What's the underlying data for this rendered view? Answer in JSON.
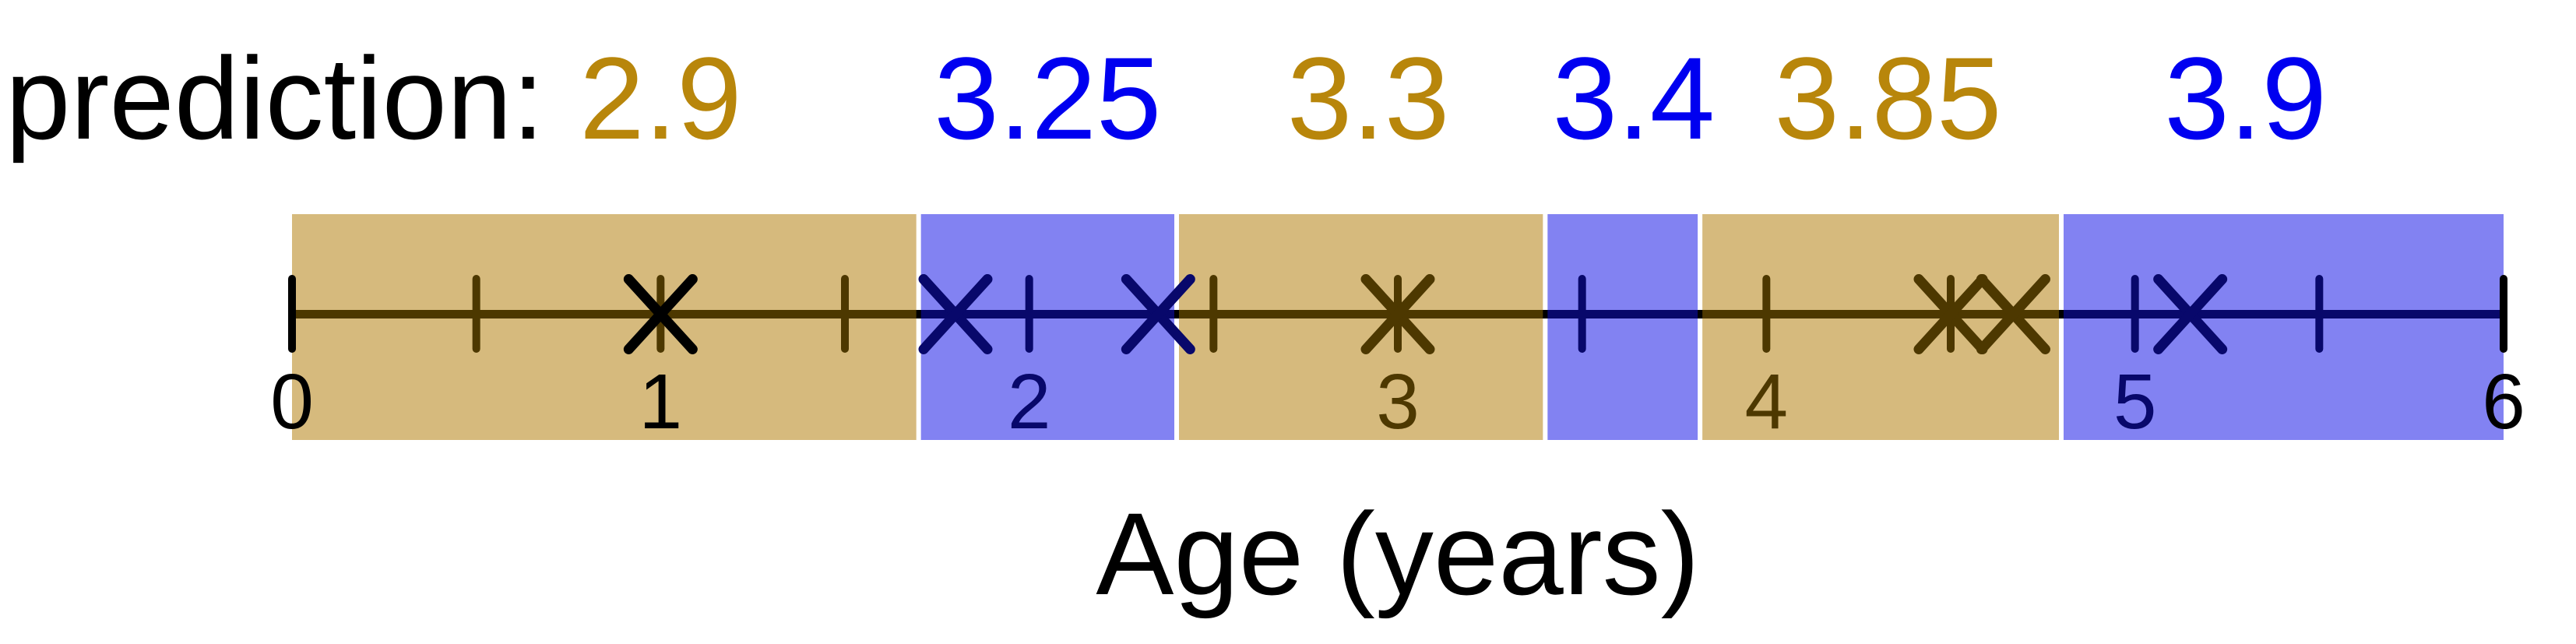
{
  "header": {
    "prediction_prefix": "prediction:"
  },
  "colors": {
    "tan_band": "#d6ba7d",
    "blue_band": "#8282f2",
    "gold_text": "#b8860b",
    "blue_text": "#0000f0",
    "brown_mark": "#4d3800",
    "navy_mark": "#08086b",
    "black": "#000000",
    "background": "#ffffff"
  },
  "chart_data": {
    "type": "scatter",
    "title": "",
    "xlabel": "Age (years)",
    "ylabel": "",
    "x_range": [
      0,
      6
    ],
    "tick_step": 0.5,
    "grid": false,
    "legend": "none",
    "regions": [
      {
        "from": 0,
        "to": 1.7,
        "color": "tan",
        "prediction": 2.9,
        "prediction_label": "2.9",
        "label_x": 1.0
      },
      {
        "from": 1.7,
        "to": 2.4,
        "color": "blue",
        "prediction": 3.25,
        "prediction_label": "3.25",
        "label_x": 2.05
      },
      {
        "from": 2.4,
        "to": 3.4,
        "color": "tan",
        "prediction": 3.3,
        "prediction_label": "3.3",
        "label_x": 2.92
      },
      {
        "from": 3.4,
        "to": 3.82,
        "color": "blue",
        "prediction": 3.4,
        "prediction_label": "3.4",
        "label_x": 3.64
      },
      {
        "from": 3.82,
        "to": 4.8,
        "color": "tan",
        "prediction": 3.85,
        "prediction_label": "3.85",
        "label_x": 4.33
      },
      {
        "from": 4.8,
        "to": 6,
        "color": "blue",
        "prediction": 3.9,
        "prediction_label": "3.9",
        "label_x": 5.3
      }
    ],
    "points": [
      {
        "x": 1.0,
        "color": "black"
      },
      {
        "x": 1.8,
        "color": "navy"
      },
      {
        "x": 2.35,
        "color": "navy"
      },
      {
        "x": 3.0,
        "color": "brown"
      },
      {
        "x": 4.5,
        "color": "brown"
      },
      {
        "x": 4.67,
        "color": "brown"
      },
      {
        "x": 5.15,
        "color": "navy"
      }
    ],
    "x_axis_labels": [
      {
        "value": 0,
        "label": "0",
        "color": "black"
      },
      {
        "value": 1,
        "label": "1",
        "color": "black"
      },
      {
        "value": 2,
        "label": "2",
        "color": "navy"
      },
      {
        "value": 3,
        "label": "3",
        "color": "brown"
      },
      {
        "value": 4,
        "label": "4",
        "color": "brown"
      },
      {
        "value": 5,
        "label": "5",
        "color": "navy"
      },
      {
        "value": 6,
        "label": "6",
        "color": "black"
      }
    ]
  }
}
